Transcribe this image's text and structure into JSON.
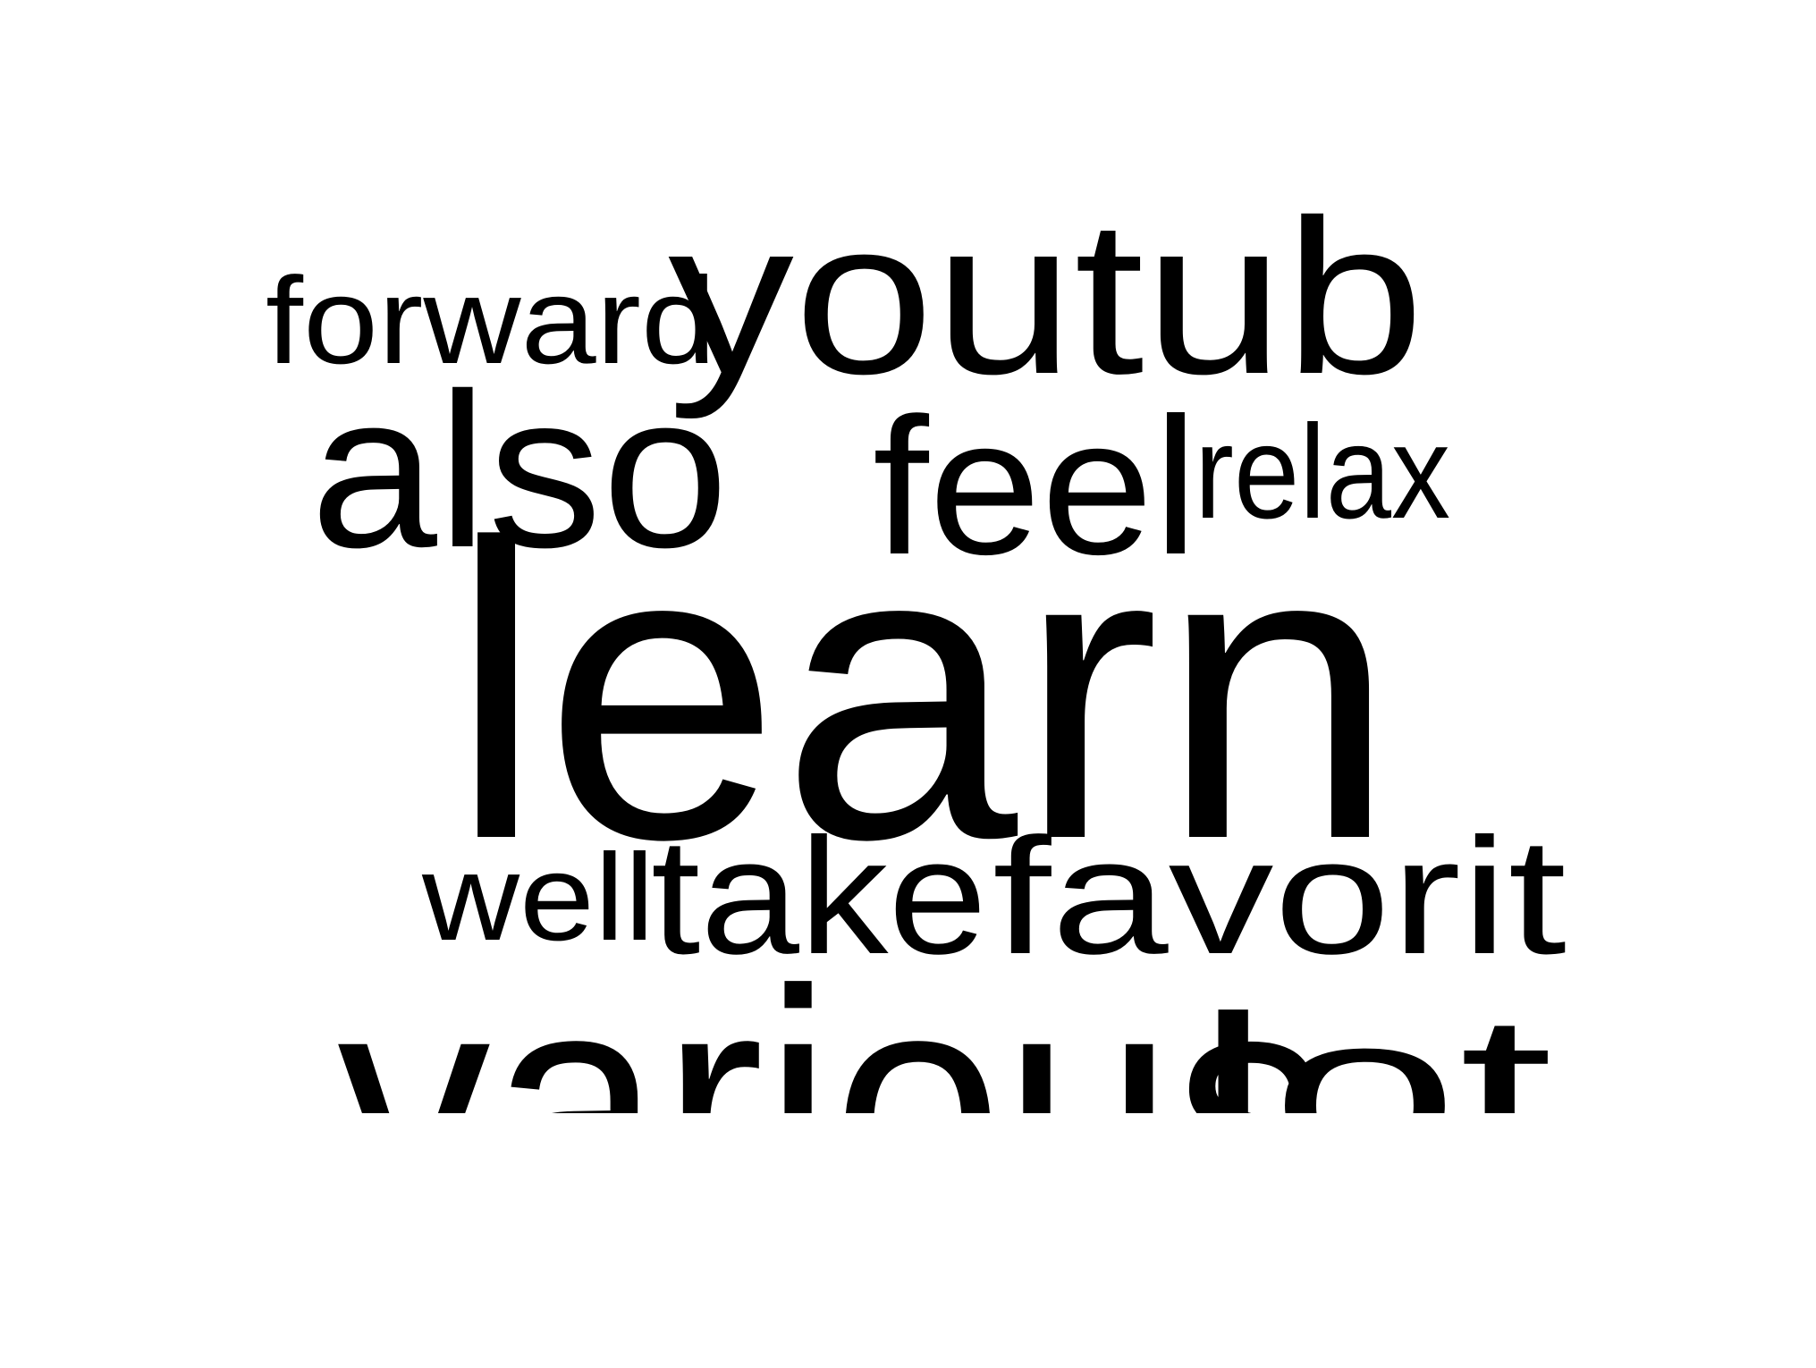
{
  "word_cloud": {
    "text_color": "#000000",
    "background_color": "#ffffff",
    "words": [
      "forward",
      "youtub",
      "also",
      "feel",
      "relax",
      "learn",
      "well",
      "take",
      "favorit",
      "various",
      "lot"
    ]
  }
}
